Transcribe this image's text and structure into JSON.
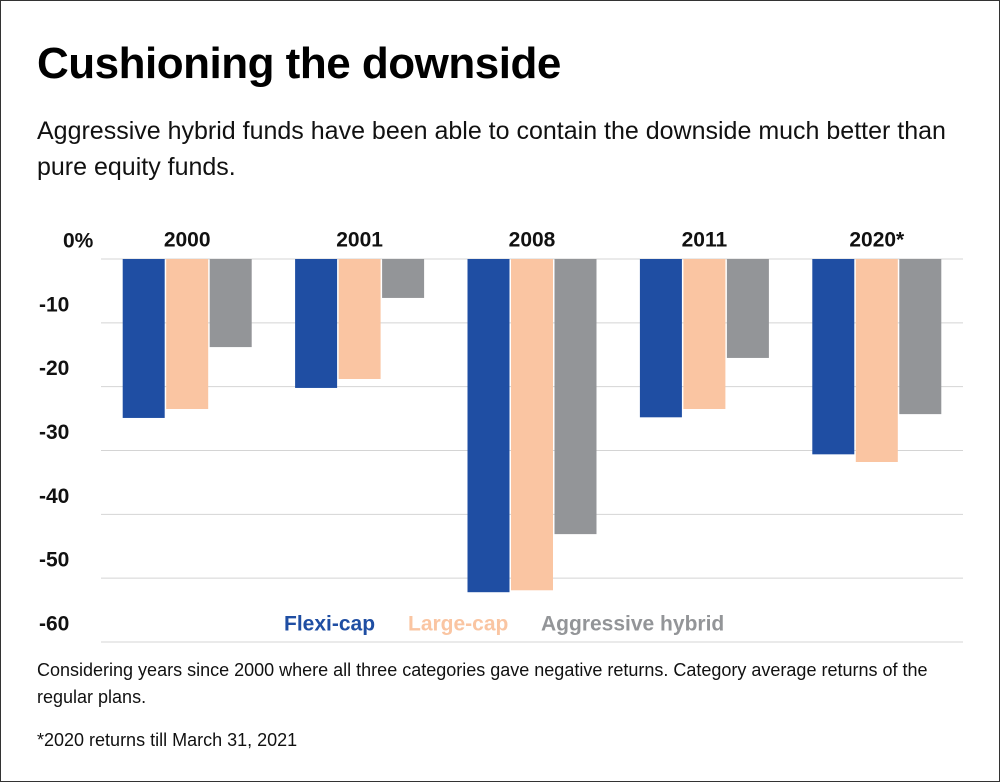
{
  "chart_data": {
    "type": "bar",
    "title": "Cushioning the downside",
    "subtitle": "Aggressive hybrid funds have been able to contain the downside much better than pure equity funds.",
    "categories": [
      "2000",
      "2001",
      "2008",
      "2011",
      "2020*"
    ],
    "series": [
      {
        "name": "Flexi-cap",
        "color": "#1f4ea3",
        "values": [
          -24.9,
          -20.2,
          -52.2,
          -24.8,
          -30.6
        ]
      },
      {
        "name": "Large-cap",
        "color": "#fac5a2",
        "values": [
          -23.5,
          -18.8,
          -51.9,
          -23.5,
          -31.8
        ]
      },
      {
        "name": "Aggressive hybrid",
        "color": "#939598",
        "values": [
          -13.8,
          -6.1,
          -43.1,
          -15.5,
          -24.3
        ]
      }
    ],
    "ylim": [
      -60,
      0
    ],
    "yticks": [
      {
        "value": 0,
        "label": "0%"
      },
      -10,
      -20,
      -30,
      -40,
      -50,
      -60
    ],
    "grid": true,
    "notes": [
      "Considering years since 2000 where all three categories gave negative returns. Category average returns of the regular plans.",
      "*2020 returns till March 31, 2021"
    ]
  }
}
